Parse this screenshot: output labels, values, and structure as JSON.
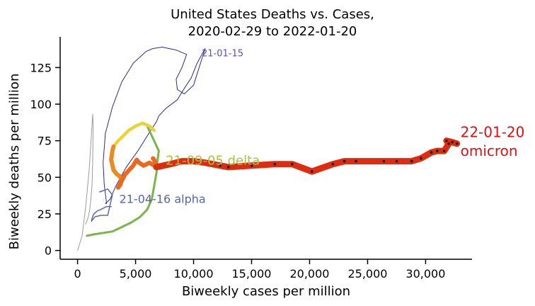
{
  "chart_data": {
    "type": "line",
    "title": "United States Deaths vs. Cases,",
    "subtitle": "2020-02-29 to 2022-01-20",
    "xlabel": "Biweekly cases per million",
    "ylabel": "Biweekly deaths per million",
    "xlim": [
      -1500,
      34000
    ],
    "ylim": [
      -6,
      146
    ],
    "xticks": [
      0,
      5000,
      10000,
      15000,
      20000,
      25000,
      30000
    ],
    "xtick_labels": [
      "0",
      "5,000",
      "10,000",
      "15,000",
      "20,000",
      "25,000",
      "30,000"
    ],
    "yticks": [
      0,
      25,
      50,
      75,
      100,
      125
    ],
    "ytick_labels": [
      "0",
      "25",
      "50",
      "75",
      "100",
      "125"
    ],
    "grid": false,
    "series": [
      {
        "color": "#9a9a9a",
        "x": [
          0,
          400,
          700,
          1000,
          1200,
          1300,
          1350,
          1300,
          1250,
          1150,
          1050,
          900,
          700
        ],
        "y": [
          0,
          10,
          30,
          55,
          80,
          93,
          85,
          60,
          45,
          35,
          28,
          22,
          18
        ]
      },
      {
        "color": "#2d2a8f",
        "x": [
          2500,
          2300,
          2200,
          2400,
          3000,
          3800,
          4800,
          5900,
          6500,
          7300,
          8500,
          9400,
          9000,
          8500,
          8600,
          9200,
          10000,
          11000,
          10300,
          9800,
          9300,
          8600,
          7600,
          7000,
          6800,
          6300,
          5200,
          4200,
          3300,
          2800,
          2400
        ],
        "y": [
          32,
          45,
          60,
          80,
          98,
          115,
          128,
          136,
          138,
          139,
          137,
          134,
          125,
          117,
          110,
          107,
          113,
          138,
          128,
          118,
          112,
          103,
          97,
          92,
          88,
          82,
          68,
          57,
          44,
          35,
          32
        ]
      },
      {
        "color": "#5d6aa8",
        "x": [
          2900,
          2500,
          2000,
          1700,
          1400,
          1250,
          1200,
          1500,
          2000,
          2600,
          3000,
          2600,
          1900
        ],
        "y": [
          30,
          30,
          28,
          27,
          25,
          22,
          20,
          23,
          24,
          24,
          38,
          42,
          40
        ]
      },
      {
        "color": "#79b54a",
        "x": [
          800,
          1400,
          2200,
          3000,
          3800,
          4600,
          5400,
          6000,
          6400,
          6600,
          6800,
          6900,
          7000,
          6600,
          6000
        ],
        "y": [
          10,
          11,
          12,
          13,
          16,
          19,
          23,
          28,
          35,
          44,
          53,
          62,
          68,
          75,
          85
        ]
      },
      {
        "color": "#e8d43a",
        "x": [
          6600,
          6200,
          5600,
          5000,
          4400,
          3900,
          3500,
          3200,
          3100
        ],
        "y": [
          82,
          85,
          87,
          85,
          82,
          78,
          75,
          72,
          71
        ]
      },
      {
        "color": "#e98a22",
        "x": [
          3100,
          3000,
          2900,
          3100,
          3400,
          3600,
          3800,
          3700,
          3500
        ],
        "y": [
          71,
          68,
          62,
          55,
          52,
          51,
          48,
          45,
          43
        ]
      },
      {
        "color": "#e86a20",
        "x": [
          3500,
          4100,
          4800,
          5100,
          5300,
          5700,
          6200,
          6800,
          6600,
          6500
        ],
        "y": [
          43,
          52,
          58,
          62,
          60,
          58,
          60,
          57,
          62,
          63
        ]
      },
      {
        "color": "#de2c10",
        "x": [
          6800,
          8000,
          9000,
          10000,
          11000,
          12300,
          13000,
          15000,
          17000,
          18500,
          20200,
          22000,
          23000,
          24000,
          26400,
          27500,
          28800,
          29600,
          30500,
          31000,
          31600,
          32000,
          31800,
          32300,
          32700
        ],
        "y": [
          57,
          59,
          61,
          61,
          60,
          58,
          57,
          58,
          59,
          59,
          54,
          59,
          61,
          61,
          61,
          61,
          61,
          63,
          67,
          68,
          68,
          73,
          75,
          74,
          73
        ]
      }
    ],
    "annotations": [
      {
        "text": "21-01-15",
        "x": 10700,
        "y": 135,
        "color": "#5b4fbf"
      },
      {
        "text": "21-04-16 alpha",
        "x": 3600,
        "y": 35,
        "color": "#5566a8"
      },
      {
        "text": "21-09-05 delta",
        "x": 7600,
        "y": 61,
        "color": "#9fc73f"
      },
      {
        "text": "22-01-20",
        "x": 33000,
        "y": 80,
        "color": "#dd1111"
      },
      {
        "text": "omicron",
        "x": 33000,
        "y": 67,
        "color": "#dd1111"
      }
    ]
  }
}
